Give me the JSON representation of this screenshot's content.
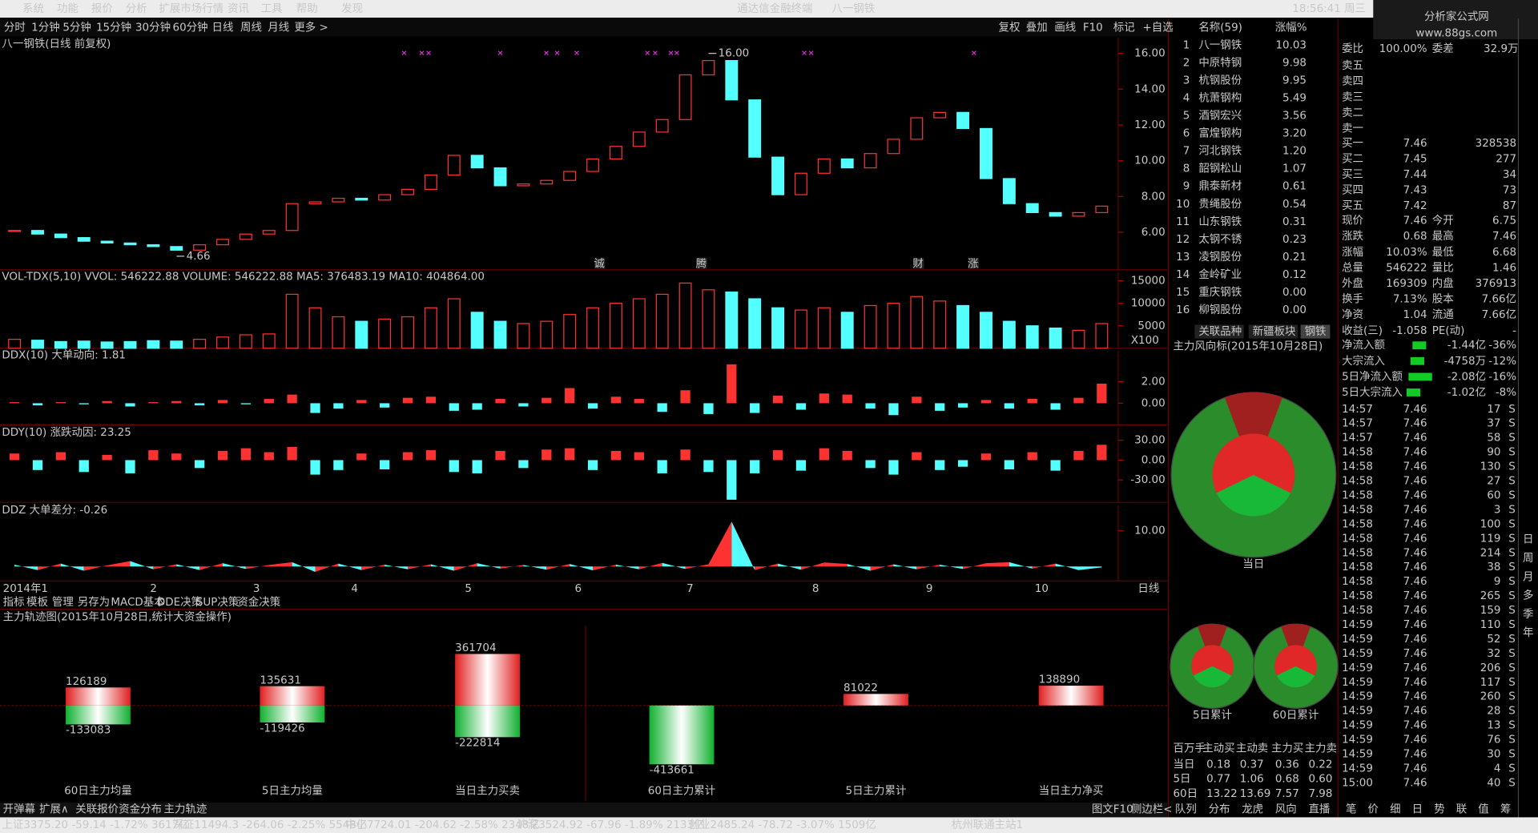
{
  "menu": [
    "系统",
    "功能",
    "报价",
    "分析",
    "扩展市场行情",
    "资讯",
    "工具",
    "帮助",
    "发现"
  ],
  "title": [
    "通达信金融终端",
    "八一钢铁"
  ],
  "clock": "18:56:41 周三",
  "logo": [
    "分析家公式网",
    "www.88gs.com"
  ],
  "periods": [
    "分时",
    "1分钟",
    "5分钟",
    "15分钟",
    "30分钟",
    "60分钟",
    "日线",
    "周线",
    "月线",
    "更多 >"
  ],
  "tools": [
    "复权",
    "叠加",
    "画线",
    "F10",
    "标记",
    "+自选"
  ],
  "kline": {
    "label": "八一钢铁(日线 前复权)",
    "ylim": [
      3.9,
      16.9
    ],
    "yticks": [
      {
        "value": 6,
        "label": "6.00"
      },
      {
        "value": 8,
        "label": "8.00"
      },
      {
        "value": 10,
        "label": "10.00"
      },
      {
        "value": 12,
        "label": "12.00"
      },
      {
        "value": 14,
        "label": "14.00"
      },
      {
        "value": 16,
        "label": "16.00"
      }
    ],
    "high_note": {
      "value": 16,
      "label": "16.00"
    },
    "low_note": {
      "value": 4.66,
      "label": "4.66"
    },
    "close": [
      6.1,
      5.9,
      5.7,
      5.5,
      5.4,
      5.3,
      5.2,
      5.0,
      5.3,
      5.6,
      5.9,
      6.1,
      7.6,
      7.7,
      7.9,
      7.8,
      8.1,
      8.4,
      9.2,
      10.3,
      9.6,
      8.6,
      8.7,
      8.9,
      9.4,
      10.1,
      10.8,
      11.6,
      12.3,
      14.8,
      15.6,
      13.4,
      10.2,
      8.1,
      9.3,
      10.1,
      9.6,
      10.4,
      11.2,
      12.4,
      12.7,
      11.8,
      9.0,
      7.6,
      7.1,
      6.9,
      7.1,
      7.46
    ],
    "signals": [
      "诚",
      "腾",
      "财",
      "涨"
    ]
  },
  "volume": {
    "label": "VOL-TDX(5,10) VVOL: 546222.88 VOLUME: 546222.88 MA5: 376483.19 MA10: 404864.00",
    "unit": "X100",
    "ylim": [
      0,
      17000
    ],
    "yticks": [
      5000,
      10000,
      15000
    ],
    "values": [
      2000,
      1800,
      1500,
      1600,
      1400,
      1500,
      1700,
      1600,
      2000,
      2500,
      3000,
      3200,
      12000,
      9000,
      7000,
      6000,
      6500,
      7000,
      9000,
      11000,
      8000,
      6000,
      5500,
      6000,
      7500,
      9000,
      10000,
      11000,
      12000,
      14500,
      13000,
      12500,
      11000,
      9000,
      8500,
      9000,
      8000,
      9500,
      10000,
      11500,
      10500,
      9500,
      8000,
      6000,
      5000,
      4500,
      4000,
      5500
    ]
  },
  "ddx": {
    "label": "DDX(10) 大单动向: 1.81",
    "ylim": [
      -2,
      4.9
    ],
    "yticks": [
      {
        "value": 0,
        "label": "0.00"
      },
      {
        "value": 2,
        "label": "2.00"
      }
    ],
    "values": [
      0.1,
      -0.2,
      0.1,
      -0.1,
      0.2,
      -0.3,
      0.1,
      0.2,
      -0.2,
      0.3,
      -0.1,
      0.4,
      0.8,
      -0.9,
      -0.5,
      0.3,
      -0.4,
      0.5,
      0.6,
      -0.7,
      -0.6,
      0.4,
      -0.3,
      0.5,
      1.4,
      -0.5,
      0.6,
      0.4,
      -0.8,
      1.2,
      -1.0,
      3.6,
      -0.9,
      0.7,
      -0.6,
      0.9,
      0.8,
      -0.5,
      -1.1,
      0.6,
      -0.7,
      -0.4,
      0.3,
      -0.5,
      0.4,
      -0.6,
      0.5,
      1.81
    ]
  },
  "ddy": {
    "label": "DDY(10) 涨跌动因: 23.25",
    "ylim": [
      -64,
      49
    ],
    "yticks": [
      {
        "value": -30,
        "label": "-30.00"
      },
      {
        "value": 0,
        "label": "0.00"
      },
      {
        "value": 30,
        "label": "30.00"
      }
    ],
    "values": [
      10,
      -15,
      12,
      -18,
      8,
      -20,
      15,
      10,
      -12,
      14,
      18,
      12,
      20,
      -22,
      -15,
      10,
      -14,
      12,
      15,
      -18,
      -20,
      14,
      -12,
      16,
      18,
      -15,
      14,
      12,
      -20,
      16,
      -18,
      -60,
      -20,
      15,
      -16,
      18,
      14,
      -12,
      -22,
      12,
      -15,
      -10,
      10,
      -14,
      12,
      -16,
      14,
      23.25
    ]
  },
  "ddz": {
    "label": "DDZ 大单差分: -0.26",
    "ylim": [
      -4,
      17
    ],
    "yticks": [
      {
        "value": 10,
        "label": "10.00"
      }
    ],
    "values": [
      0.5,
      -1,
      0.8,
      -1.2,
      0.3,
      1.5,
      -0.8,
      0.6,
      -1,
      0.9,
      -0.7,
      0.4,
      1.2,
      -1.5,
      0.8,
      -1,
      0.5,
      -0.8,
      0.6,
      -1.2,
      0.9,
      -0.6,
      0.4,
      -0.9,
      0.7,
      -1.1,
      0.5,
      -0.8,
      1,
      -0.7,
      0.6,
      12.5,
      -1,
      0.8,
      -0.9,
      1.1,
      0.7,
      -1.2,
      0.6,
      -0.8,
      0.5,
      -0.7,
      0.9,
      1.2,
      -0.6,
      0.8,
      -1,
      -0.26
    ]
  },
  "xaxis": [
    "2014年",
    "1",
    "2",
    "3",
    "4",
    "5",
    "6",
    "7",
    "8",
    "9",
    "10"
  ],
  "xaxis_period": "日线",
  "indicator_tabs": [
    "指标",
    "模板",
    "管理",
    "另存为",
    "MACD基本",
    "DDE决策",
    "SUP决策",
    "资金决策"
  ],
  "mainforce": {
    "title": "主力轨迹图(2015年10月28日,统计大资金操作)",
    "groups": [
      {
        "label": "60日主力均量",
        "values": [
          126189,
          -133083
        ]
      },
      {
        "label": "5日主力均量",
        "values": [
          135631,
          -119426
        ]
      },
      {
        "label": "当日主力买卖",
        "values": [
          361704,
          -222814
        ]
      },
      {
        "label": "60日主力累计",
        "values": [
          -413661
        ]
      },
      {
        "label": "5日主力累计",
        "values": [
          81022
        ]
      },
      {
        "label": "当日主力净买",
        "values": [
          138890
        ]
      }
    ]
  },
  "bottom_tabs": [
    "开弹幕",
    "扩展∧",
    "关联报价",
    "资金分布",
    "主力轨迹"
  ],
  "bottom_right": [
    "图文F10",
    "侧边栏<"
  ],
  "status": [
    "上证3375.20 -59.14 -1.72% 3617亿",
    "深证11494.3 -264.06 -2.25% 5548亿",
    "中小7724.01 -204.62 -2.58% 2348亿",
    "沪深3524.92 -67.96 -1.89% 2133亿",
    "创业2485.24 -78.72 -3.07% 1509亿",
    "杭州联通主站1"
  ],
  "list": {
    "header": [
      "名称(59)",
      "涨幅%"
    ],
    "rows": [
      [
        "1",
        "八一钢铁",
        "10.03"
      ],
      [
        "2",
        "中原特钢",
        "9.98"
      ],
      [
        "3",
        "杭钢股份",
        "9.95"
      ],
      [
        "4",
        "杭萧钢构",
        "5.49"
      ],
      [
        "5",
        "酒钢宏兴",
        "3.56"
      ],
      [
        "6",
        "富煌钢构",
        "3.20"
      ],
      [
        "7",
        "河北钢铁",
        "1.20"
      ],
      [
        "8",
        "韶钢松山",
        "1.07"
      ],
      [
        "9",
        "鼎泰新材",
        "0.61"
      ],
      [
        "10",
        "贵绳股份",
        "0.54"
      ],
      [
        "11",
        "山东钢铁",
        "0.31"
      ],
      [
        "12",
        "太钢不锈",
        "0.23"
      ],
      [
        "13",
        "凌钢股份",
        "0.21"
      ],
      [
        "14",
        "金岭矿业",
        "0.12"
      ],
      [
        "15",
        "重庆钢铁",
        "0.00"
      ],
      [
        "16",
        "柳钢股份",
        "0.00"
      ]
    ],
    "tabs": [
      "关联品种",
      "新疆板块",
      "钢铁"
    ]
  },
  "wind": {
    "title": "主力风向标(2015年10月28日)",
    "pies": [
      "当日",
      "5日累计",
      "60日累计"
    ],
    "table": {
      "header": [
        "百万手",
        "主动买",
        "主动卖",
        "主力买",
        "主力卖"
      ],
      "rows": [
        [
          "当日",
          "0.18",
          "0.37",
          "0.36",
          "0.22"
        ],
        [
          "5日",
          "0.77",
          "1.06",
          "0.68",
          "0.60"
        ],
        [
          "60日",
          "13.22",
          "13.69",
          "7.57",
          "7.98"
        ]
      ]
    },
    "tabs": [
      "队列",
      "分布",
      "龙虎",
      "风向",
      "直播"
    ]
  },
  "quote": {
    "weibi": [
      "委比",
      "100.00%",
      "委差",
      "32.9万"
    ],
    "sell": [
      "卖五",
      "卖四",
      "卖三",
      "卖二",
      "卖一"
    ],
    "buy": [
      [
        "买一",
        "7.46",
        "328538"
      ],
      [
        "买二",
        "7.45",
        "277"
      ],
      [
        "买三",
        "7.44",
        "34"
      ],
      [
        "买四",
        "7.43",
        "73"
      ],
      [
        "买五",
        "7.42",
        "87"
      ]
    ],
    "stats": [
      [
        "现价",
        "7.46",
        "今开",
        "6.75"
      ],
      [
        "涨跌",
        "0.68",
        "最高",
        "7.46"
      ],
      [
        "涨幅",
        "10.03%",
        "最低",
        "6.68"
      ],
      [
        "总量",
        "546222",
        "量比",
        "1.46"
      ],
      [
        "外盘",
        "169309",
        "内盘",
        "376913"
      ],
      [
        "换手",
        "7.13%",
        "股本",
        "7.66亿"
      ],
      [
        "净资",
        "1.04",
        "流通",
        "7.66亿"
      ],
      [
        "收益(三)",
        "-1.058",
        "PE(动)",
        "-"
      ]
    ],
    "flows": [
      [
        "净流入额",
        "-1.44亿",
        "-36%"
      ],
      [
        "大宗流入",
        "-4758万",
        "-12%"
      ],
      [
        "5日净流入额",
        "-2.08亿",
        "-16%"
      ],
      [
        "5日大宗流入",
        "-1.02亿",
        "-8%"
      ]
    ],
    "ticks": [
      [
        "14:57",
        "7.46",
        "17",
        "S"
      ],
      [
        "14:57",
        "7.46",
        "37",
        "S"
      ],
      [
        "14:57",
        "7.46",
        "58",
        "S"
      ],
      [
        "14:58",
        "7.46",
        "90",
        "S"
      ],
      [
        "14:58",
        "7.46",
        "130",
        "S"
      ],
      [
        "14:58",
        "7.46",
        "27",
        "S"
      ],
      [
        "14:58",
        "7.46",
        "60",
        "S"
      ],
      [
        "14:58",
        "7.46",
        "3",
        "S"
      ],
      [
        "14:58",
        "7.46",
        "100",
        "S"
      ],
      [
        "14:58",
        "7.46",
        "119",
        "S"
      ],
      [
        "14:58",
        "7.46",
        "214",
        "S"
      ],
      [
        "14:58",
        "7.46",
        "38",
        "S"
      ],
      [
        "14:58",
        "7.46",
        "9",
        "S"
      ],
      [
        "14:58",
        "7.46",
        "265",
        "S"
      ],
      [
        "14:58",
        "7.46",
        "159",
        "S"
      ],
      [
        "14:59",
        "7.46",
        "110",
        "S"
      ],
      [
        "14:59",
        "7.46",
        "52",
        "S"
      ],
      [
        "14:59",
        "7.46",
        "32",
        "S"
      ],
      [
        "14:59",
        "7.46",
        "206",
        "S"
      ],
      [
        "14:59",
        "7.46",
        "117",
        "S"
      ],
      [
        "14:59",
        "7.46",
        "260",
        "S"
      ],
      [
        "14:59",
        "7.46",
        "28",
        "S"
      ],
      [
        "14:59",
        "7.46",
        "13",
        "S"
      ],
      [
        "14:59",
        "7.46",
        "76",
        "S"
      ],
      [
        "14:59",
        "7.46",
        "30",
        "S"
      ],
      [
        "14:59",
        "7.46",
        "4",
        "S"
      ],
      [
        "15:00",
        "7.46",
        "40",
        "S"
      ]
    ],
    "tabs": [
      "笔",
      "价",
      "细",
      "日",
      "势",
      "联",
      "值",
      "筹"
    ]
  },
  "sidebar": [
    "日",
    "周",
    "月",
    "多",
    "季",
    "年"
  ]
}
